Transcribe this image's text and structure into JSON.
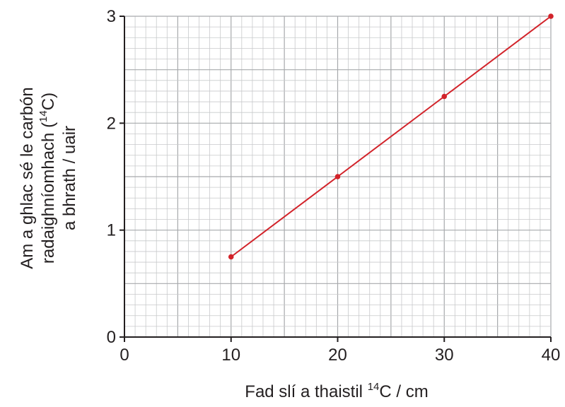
{
  "chart_data": {
    "type": "line",
    "xlabel": {
      "line1_prefix": "Fad slí a thaistil ",
      "sup": "14",
      "line1_suffix": "C / cm"
    },
    "ylabel": {
      "line1": "Am a ghlac sé le carbón",
      "line2_prefix": "radaighníomhach (",
      "sup": "14",
      "line2_suffix": "C)",
      "line3": "a bhrath / uair"
    },
    "xlim": [
      0,
      40
    ],
    "ylim": [
      0,
      3
    ],
    "x_ticks": [
      0,
      10,
      20,
      30,
      40
    ],
    "y_ticks": [
      0,
      1,
      2,
      3
    ],
    "grid": true,
    "series": [
      {
        "x": [
          10,
          20,
          30,
          40
        ],
        "y": [
          0.75,
          1.5,
          2.25,
          3.0
        ]
      }
    ],
    "colors": {
      "line": "#d2232a",
      "axis": "#231f20",
      "grid_minor": "#c8c9cb",
      "grid_major": "#a7a9ac"
    }
  }
}
